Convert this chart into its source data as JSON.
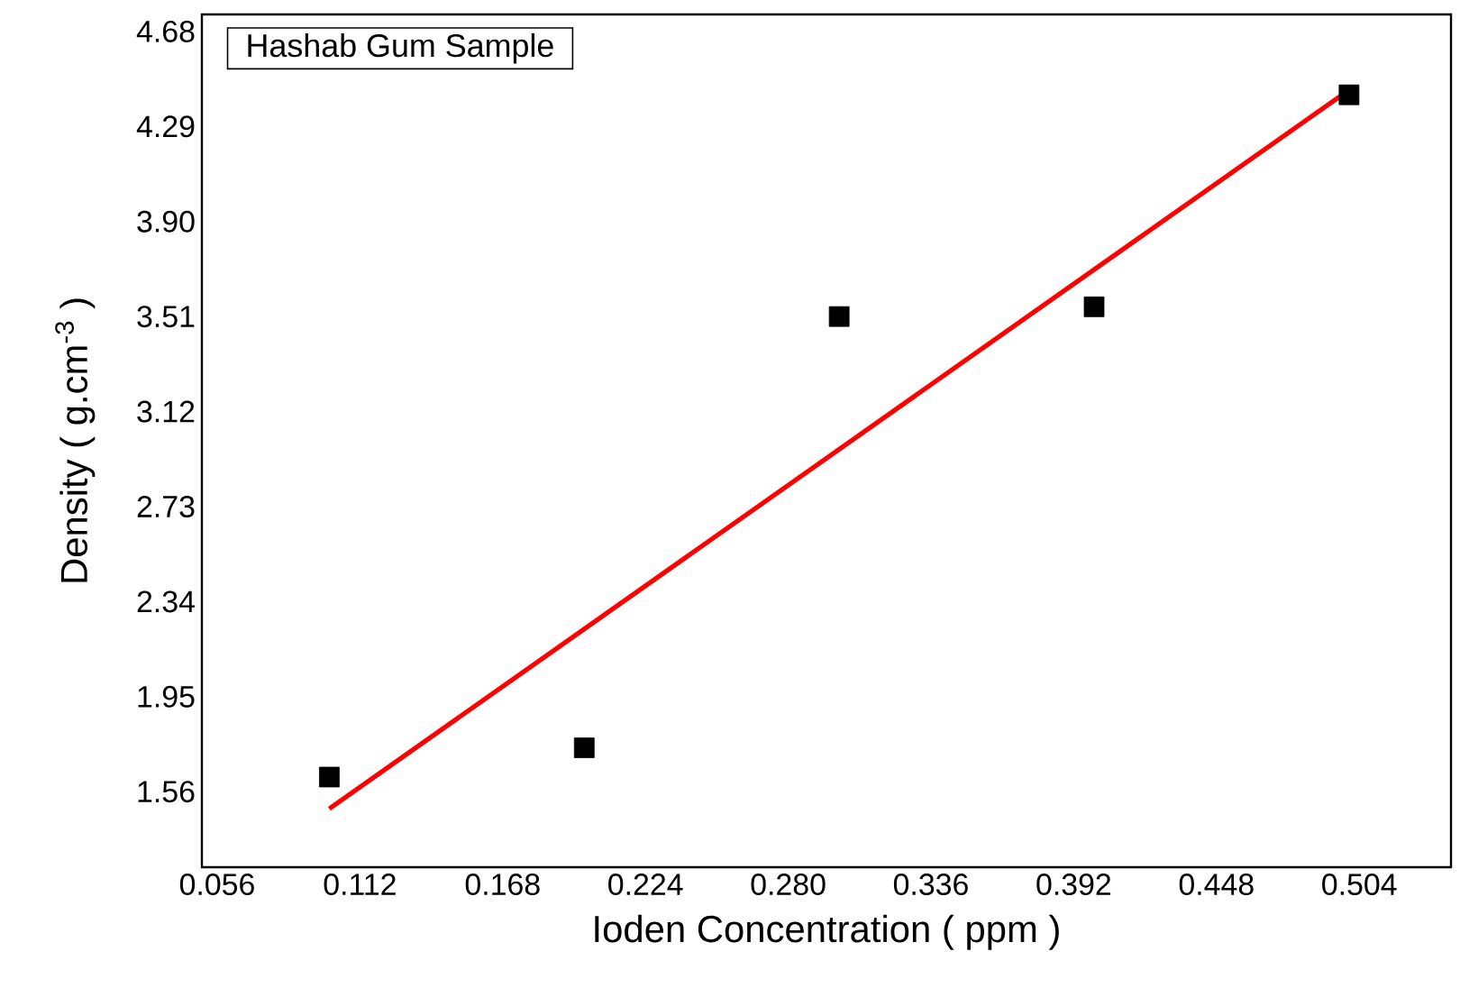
{
  "chart_data": {
    "type": "scatter",
    "xlabel": "Ioden Concentration  ( ppm )",
    "ylabel": "Density ( g.cm$^{-3}$ )",
    "legend_title": "Hashab Gum Sample",
    "xlim": [
      0.05,
      0.54
    ],
    "ylim": [
      1.25,
      4.75
    ],
    "xticks": [
      0.056,
      0.112,
      0.168,
      0.224,
      {
        "value": 0.28,
        "label": "0.280"
      },
      0.336,
      0.392,
      0.448,
      0.504
    ],
    "yticks": [
      1.56,
      1.95,
      2.34,
      2.73,
      3.12,
      3.51,
      {
        "value": 3.9,
        "label": "3.90"
      },
      4.29,
      4.68
    ],
    "grid": false,
    "series": [
      {
        "marker": "square",
        "color": "#000000",
        "x": [
          0.1,
          0.2,
          0.3,
          0.4,
          0.5
        ],
        "values": [
          1.62,
          1.74,
          3.51,
          3.55,
          4.42
        ]
      },
      {
        "type": "line",
        "marker": "none",
        "line_style": "solid",
        "color": "#ff0000",
        "x": [
          0.1,
          0.5
        ],
        "values": [
          1.49,
          4.44
        ]
      }
    ]
  }
}
